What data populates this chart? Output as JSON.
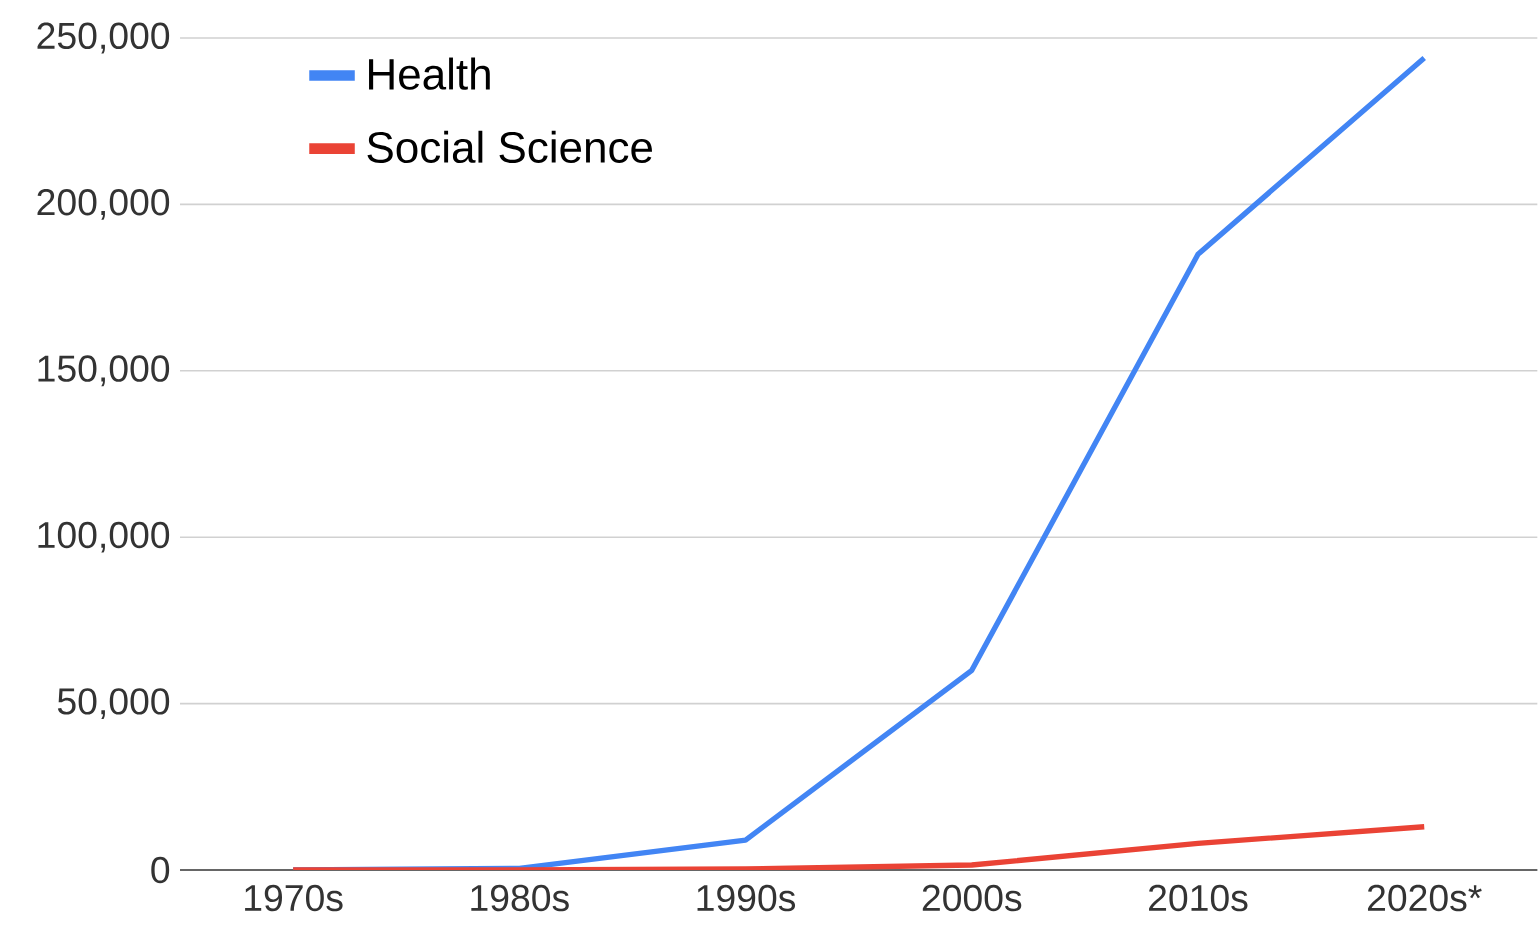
{
  "chart_data": {
    "type": "line",
    "categories": [
      "1970s",
      "1980s",
      "1990s",
      "2000s",
      "2010s",
      "2020s*"
    ],
    "series": [
      {
        "name": "Health",
        "color": "#4285f4",
        "values": [
          0,
          500,
          9000,
          60000,
          185000,
          244000
        ]
      },
      {
        "name": "Social Science",
        "color": "#ea4335",
        "values": [
          0,
          0,
          300,
          1500,
          8000,
          13000
        ]
      }
    ],
    "ylim": [
      0,
      250000
    ],
    "yticks": [
      {
        "value": 0,
        "label": "0"
      },
      {
        "value": 50000,
        "label": "50,000"
      },
      {
        "value": 100000,
        "label": "100,000"
      },
      {
        "value": 150000,
        "label": "150,000"
      },
      {
        "value": 200000,
        "label": "200,000"
      },
      {
        "value": 250000,
        "label": "250,000"
      }
    ],
    "grid": "y",
    "legend": "top left",
    "marker": "none",
    "line_style": "solid"
  }
}
